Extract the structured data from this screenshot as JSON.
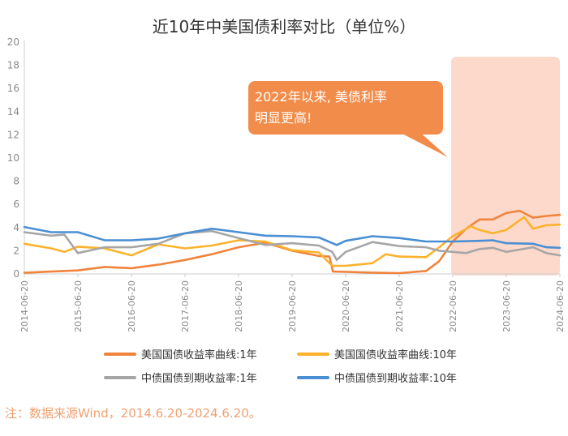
{
  "chart_data": {
    "type": "line",
    "title": "近10年中美国债利率对比（单位%）",
    "ylim": [
      0,
      20
    ],
    "yticks": [
      0,
      2,
      4,
      6,
      8,
      10,
      12,
      14,
      16,
      18,
      20
    ],
    "xlim": [
      "2014-06-20",
      "2024-06-20"
    ],
    "xticks": [
      "2014-06-20",
      "2015-06-20",
      "2016-06-20",
      "2017-06-20",
      "2018-06-20",
      "2019-06-20",
      "2020-06-20",
      "2021-06-20",
      "2022-06-20",
      "2023-06-20",
      "2024-06-20"
    ],
    "grid": false,
    "legend_position": "bottom",
    "highlight": {
      "from": "2022-06-20",
      "to": "2024-06-20",
      "color": "#fdd9cc"
    },
    "annotation": {
      "lines": [
        "2022年以来, 美债利率",
        "明显更高!"
      ],
      "color": "#f28c4a"
    },
    "series": [
      {
        "name": "美国国债收益率曲线:1年",
        "color": "#f0843c",
        "points": [
          [
            "2014-06-20",
            0.1
          ],
          [
            "2014-12-20",
            0.2
          ],
          [
            "2015-06-20",
            0.3
          ],
          [
            "2015-12-20",
            0.6
          ],
          [
            "2016-06-20",
            0.5
          ],
          [
            "2016-12-20",
            0.8
          ],
          [
            "2017-06-20",
            1.2
          ],
          [
            "2017-12-20",
            1.7
          ],
          [
            "2018-06-20",
            2.3
          ],
          [
            "2018-12-20",
            2.7
          ],
          [
            "2019-06-20",
            2.0
          ],
          [
            "2019-12-20",
            1.55
          ],
          [
            "2020-03-01",
            1.5
          ],
          [
            "2020-03-25",
            0.2
          ],
          [
            "2020-06-20",
            0.18
          ],
          [
            "2020-12-20",
            0.11
          ],
          [
            "2021-06-20",
            0.07
          ],
          [
            "2021-12-20",
            0.25
          ],
          [
            "2022-03-20",
            1.1
          ],
          [
            "2022-06-20",
            2.8
          ],
          [
            "2022-09-20",
            3.9
          ],
          [
            "2022-12-20",
            4.7
          ],
          [
            "2023-03-20",
            4.7
          ],
          [
            "2023-06-20",
            5.25
          ],
          [
            "2023-09-20",
            5.45
          ],
          [
            "2023-12-20",
            4.85
          ],
          [
            "2024-03-20",
            5.0
          ],
          [
            "2024-06-20",
            5.1
          ]
        ]
      },
      {
        "name": "美国国债收益率曲线:10年",
        "color": "#fcb22d",
        "points": [
          [
            "2014-06-20",
            2.6
          ],
          [
            "2014-12-20",
            2.2
          ],
          [
            "2015-03-20",
            1.9
          ],
          [
            "2015-06-20",
            2.35
          ],
          [
            "2015-12-20",
            2.2
          ],
          [
            "2016-06-20",
            1.6
          ],
          [
            "2016-12-20",
            2.55
          ],
          [
            "2017-06-20",
            2.2
          ],
          [
            "2017-12-20",
            2.45
          ],
          [
            "2018-06-20",
            2.9
          ],
          [
            "2018-12-20",
            2.8
          ],
          [
            "2019-06-20",
            2.05
          ],
          [
            "2019-12-20",
            1.85
          ],
          [
            "2020-03-20",
            0.7
          ],
          [
            "2020-06-20",
            0.7
          ],
          [
            "2020-12-20",
            0.93
          ],
          [
            "2021-03-20",
            1.7
          ],
          [
            "2021-06-20",
            1.5
          ],
          [
            "2021-12-20",
            1.45
          ],
          [
            "2022-03-20",
            2.3
          ],
          [
            "2022-06-20",
            3.25
          ],
          [
            "2022-10-20",
            4.1
          ],
          [
            "2022-12-20",
            3.8
          ],
          [
            "2023-03-20",
            3.5
          ],
          [
            "2023-06-20",
            3.8
          ],
          [
            "2023-10-20",
            4.9
          ],
          [
            "2023-12-20",
            3.9
          ],
          [
            "2024-03-20",
            4.2
          ],
          [
            "2024-06-20",
            4.25
          ]
        ]
      },
      {
        "name": "中债国债到期收益率:1年",
        "color": "#a6a6a6",
        "points": [
          [
            "2014-06-20",
            3.6
          ],
          [
            "2014-12-20",
            3.3
          ],
          [
            "2015-03-20",
            3.4
          ],
          [
            "2015-06-20",
            1.8
          ],
          [
            "2015-12-20",
            2.3
          ],
          [
            "2016-06-20",
            2.3
          ],
          [
            "2016-12-20",
            2.6
          ],
          [
            "2017-06-20",
            3.5
          ],
          [
            "2017-12-20",
            3.7
          ],
          [
            "2018-06-20",
            3.1
          ],
          [
            "2018-12-20",
            2.5
          ],
          [
            "2019-06-20",
            2.65
          ],
          [
            "2019-12-20",
            2.45
          ],
          [
            "2020-03-20",
            1.9
          ],
          [
            "2020-04-20",
            1.2
          ],
          [
            "2020-06-20",
            1.9
          ],
          [
            "2020-12-20",
            2.75
          ],
          [
            "2021-06-20",
            2.4
          ],
          [
            "2021-12-20",
            2.3
          ],
          [
            "2022-03-20",
            2.0
          ],
          [
            "2022-06-20",
            1.9
          ],
          [
            "2022-09-20",
            1.8
          ],
          [
            "2022-12-20",
            2.15
          ],
          [
            "2023-03-20",
            2.25
          ],
          [
            "2023-06-20",
            1.9
          ],
          [
            "2023-12-20",
            2.3
          ],
          [
            "2024-03-20",
            1.8
          ],
          [
            "2024-06-20",
            1.6
          ]
        ]
      },
      {
        "name": "中债国债到期收益率:10年",
        "color": "#4a8fd4",
        "points": [
          [
            "2014-06-20",
            4.05
          ],
          [
            "2014-12-20",
            3.6
          ],
          [
            "2015-06-20",
            3.6
          ],
          [
            "2015-12-20",
            2.9
          ],
          [
            "2016-06-20",
            2.9
          ],
          [
            "2016-12-20",
            3.05
          ],
          [
            "2017-06-20",
            3.5
          ],
          [
            "2017-12-20",
            3.9
          ],
          [
            "2018-06-20",
            3.6
          ],
          [
            "2018-12-20",
            3.3
          ],
          [
            "2019-06-20",
            3.25
          ],
          [
            "2019-12-20",
            3.15
          ],
          [
            "2020-04-20",
            2.5
          ],
          [
            "2020-06-20",
            2.85
          ],
          [
            "2020-12-20",
            3.25
          ],
          [
            "2021-06-20",
            3.1
          ],
          [
            "2021-12-20",
            2.8
          ],
          [
            "2022-06-20",
            2.8
          ],
          [
            "2022-12-20",
            2.85
          ],
          [
            "2023-03-20",
            2.9
          ],
          [
            "2023-06-20",
            2.65
          ],
          [
            "2023-12-20",
            2.6
          ],
          [
            "2024-03-20",
            2.3
          ],
          [
            "2024-06-20",
            2.25
          ]
        ]
      }
    ]
  },
  "note": "注：数据来源Wind，2014.6.20-2024.6.20。"
}
